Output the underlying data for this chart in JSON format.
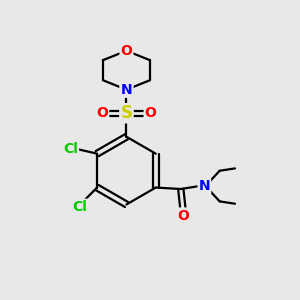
{
  "background_color": "#e8e8e8",
  "atom_colors": {
    "C": "#000000",
    "N": "#0000ff",
    "O": "#ff0000",
    "S": "#cccc00",
    "Cl": "#00cc00"
  },
  "bond_color": "#000000",
  "bond_width": 1.6,
  "font_size": 10,
  "fig_size": [
    3.0,
    3.0
  ],
  "dpi": 100
}
